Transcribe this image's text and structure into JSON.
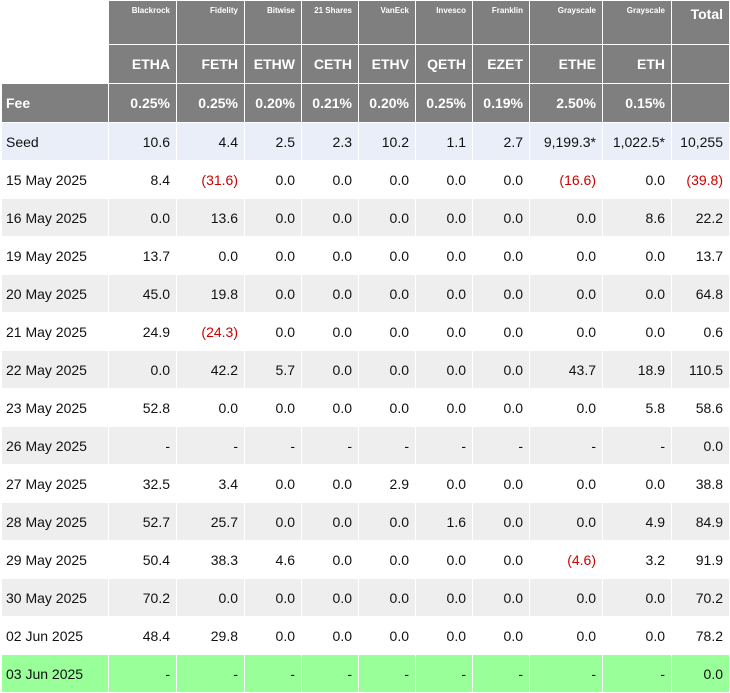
{
  "issuers": [
    "Blackrock",
    "Fidelity",
    "Bitwise",
    "21 Shares",
    "VanEck",
    "Invesco",
    "Franklin",
    "Grayscale",
    "Grayscale"
  ],
  "total_label": "Total",
  "tickers": [
    "ETHA",
    "FETH",
    "ETHW",
    "CETH",
    "ETHV",
    "QETH",
    "EZET",
    "ETHE",
    "ETH"
  ],
  "fee_label": "Fee",
  "fees": [
    "0.25%",
    "0.25%",
    "0.20%",
    "0.21%",
    "0.20%",
    "0.25%",
    "0.19%",
    "2.50%",
    "0.15%"
  ],
  "colors": {
    "header_bg": "#7f7f7f",
    "stripe_bg": "#eeeeee",
    "seed_bg": "#e9eef8",
    "highlight_bg": "#99ff99",
    "negative_text": "#cc0000"
  },
  "rows": [
    {
      "date": "Seed",
      "values": [
        "10.6",
        "4.4",
        "2.5",
        "2.3",
        "10.2",
        "1.1",
        "2.7",
        "9,199.3*",
        "1,022.5*"
      ],
      "total": "10,255",
      "style": "seed"
    },
    {
      "date": "15 May 2025",
      "values": [
        "8.4",
        "(31.6)",
        "0.0",
        "0.0",
        "0.0",
        "0.0",
        "0.0",
        "(16.6)",
        "0.0"
      ],
      "total": "(39.8)",
      "style": "plain"
    },
    {
      "date": "16 May 2025",
      "values": [
        "0.0",
        "13.6",
        "0.0",
        "0.0",
        "0.0",
        "0.0",
        "0.0",
        "0.0",
        "8.6"
      ],
      "total": "22.2",
      "style": "stripe"
    },
    {
      "date": "19 May 2025",
      "values": [
        "13.7",
        "0.0",
        "0.0",
        "0.0",
        "0.0",
        "0.0",
        "0.0",
        "0.0",
        "0.0"
      ],
      "total": "13.7",
      "style": "plain"
    },
    {
      "date": "20 May 2025",
      "values": [
        "45.0",
        "19.8",
        "0.0",
        "0.0",
        "0.0",
        "0.0",
        "0.0",
        "0.0",
        "0.0"
      ],
      "total": "64.8",
      "style": "stripe"
    },
    {
      "date": "21 May 2025",
      "values": [
        "24.9",
        "(24.3)",
        "0.0",
        "0.0",
        "0.0",
        "0.0",
        "0.0",
        "0.0",
        "0.0"
      ],
      "total": "0.6",
      "style": "plain"
    },
    {
      "date": "22 May 2025",
      "values": [
        "0.0",
        "42.2",
        "5.7",
        "0.0",
        "0.0",
        "0.0",
        "0.0",
        "43.7",
        "18.9"
      ],
      "total": "110.5",
      "style": "stripe"
    },
    {
      "date": "23 May 2025",
      "values": [
        "52.8",
        "0.0",
        "0.0",
        "0.0",
        "0.0",
        "0.0",
        "0.0",
        "0.0",
        "5.8"
      ],
      "total": "58.6",
      "style": "plain"
    },
    {
      "date": "26 May 2025",
      "values": [
        "-",
        "-",
        "-",
        "-",
        "-",
        "-",
        "-",
        "-",
        "-"
      ],
      "total": "0.0",
      "style": "stripe"
    },
    {
      "date": "27 May 2025",
      "values": [
        "32.5",
        "3.4",
        "0.0",
        "0.0",
        "2.9",
        "0.0",
        "0.0",
        "0.0",
        "0.0"
      ],
      "total": "38.8",
      "style": "plain"
    },
    {
      "date": "28 May 2025",
      "values": [
        "52.7",
        "25.7",
        "0.0",
        "0.0",
        "0.0",
        "1.6",
        "0.0",
        "0.0",
        "4.9"
      ],
      "total": "84.9",
      "style": "stripe"
    },
    {
      "date": "29 May 2025",
      "values": [
        "50.4",
        "38.3",
        "4.6",
        "0.0",
        "0.0",
        "0.0",
        "0.0",
        "(4.6)",
        "3.2"
      ],
      "total": "91.9",
      "style": "plain"
    },
    {
      "date": "30 May 2025",
      "values": [
        "70.2",
        "0.0",
        "0.0",
        "0.0",
        "0.0",
        "0.0",
        "0.0",
        "0.0",
        "0.0"
      ],
      "total": "70.2",
      "style": "stripe"
    },
    {
      "date": "02 Jun 2025",
      "values": [
        "48.4",
        "29.8",
        "0.0",
        "0.0",
        "0.0",
        "0.0",
        "0.0",
        "0.0",
        "0.0"
      ],
      "total": "78.2",
      "style": "plain"
    },
    {
      "date": "03 Jun 2025",
      "values": [
        "-",
        "-",
        "-",
        "-",
        "-",
        "-",
        "-",
        "-",
        "-"
      ],
      "total": "0.0",
      "style": "highlight"
    }
  ]
}
